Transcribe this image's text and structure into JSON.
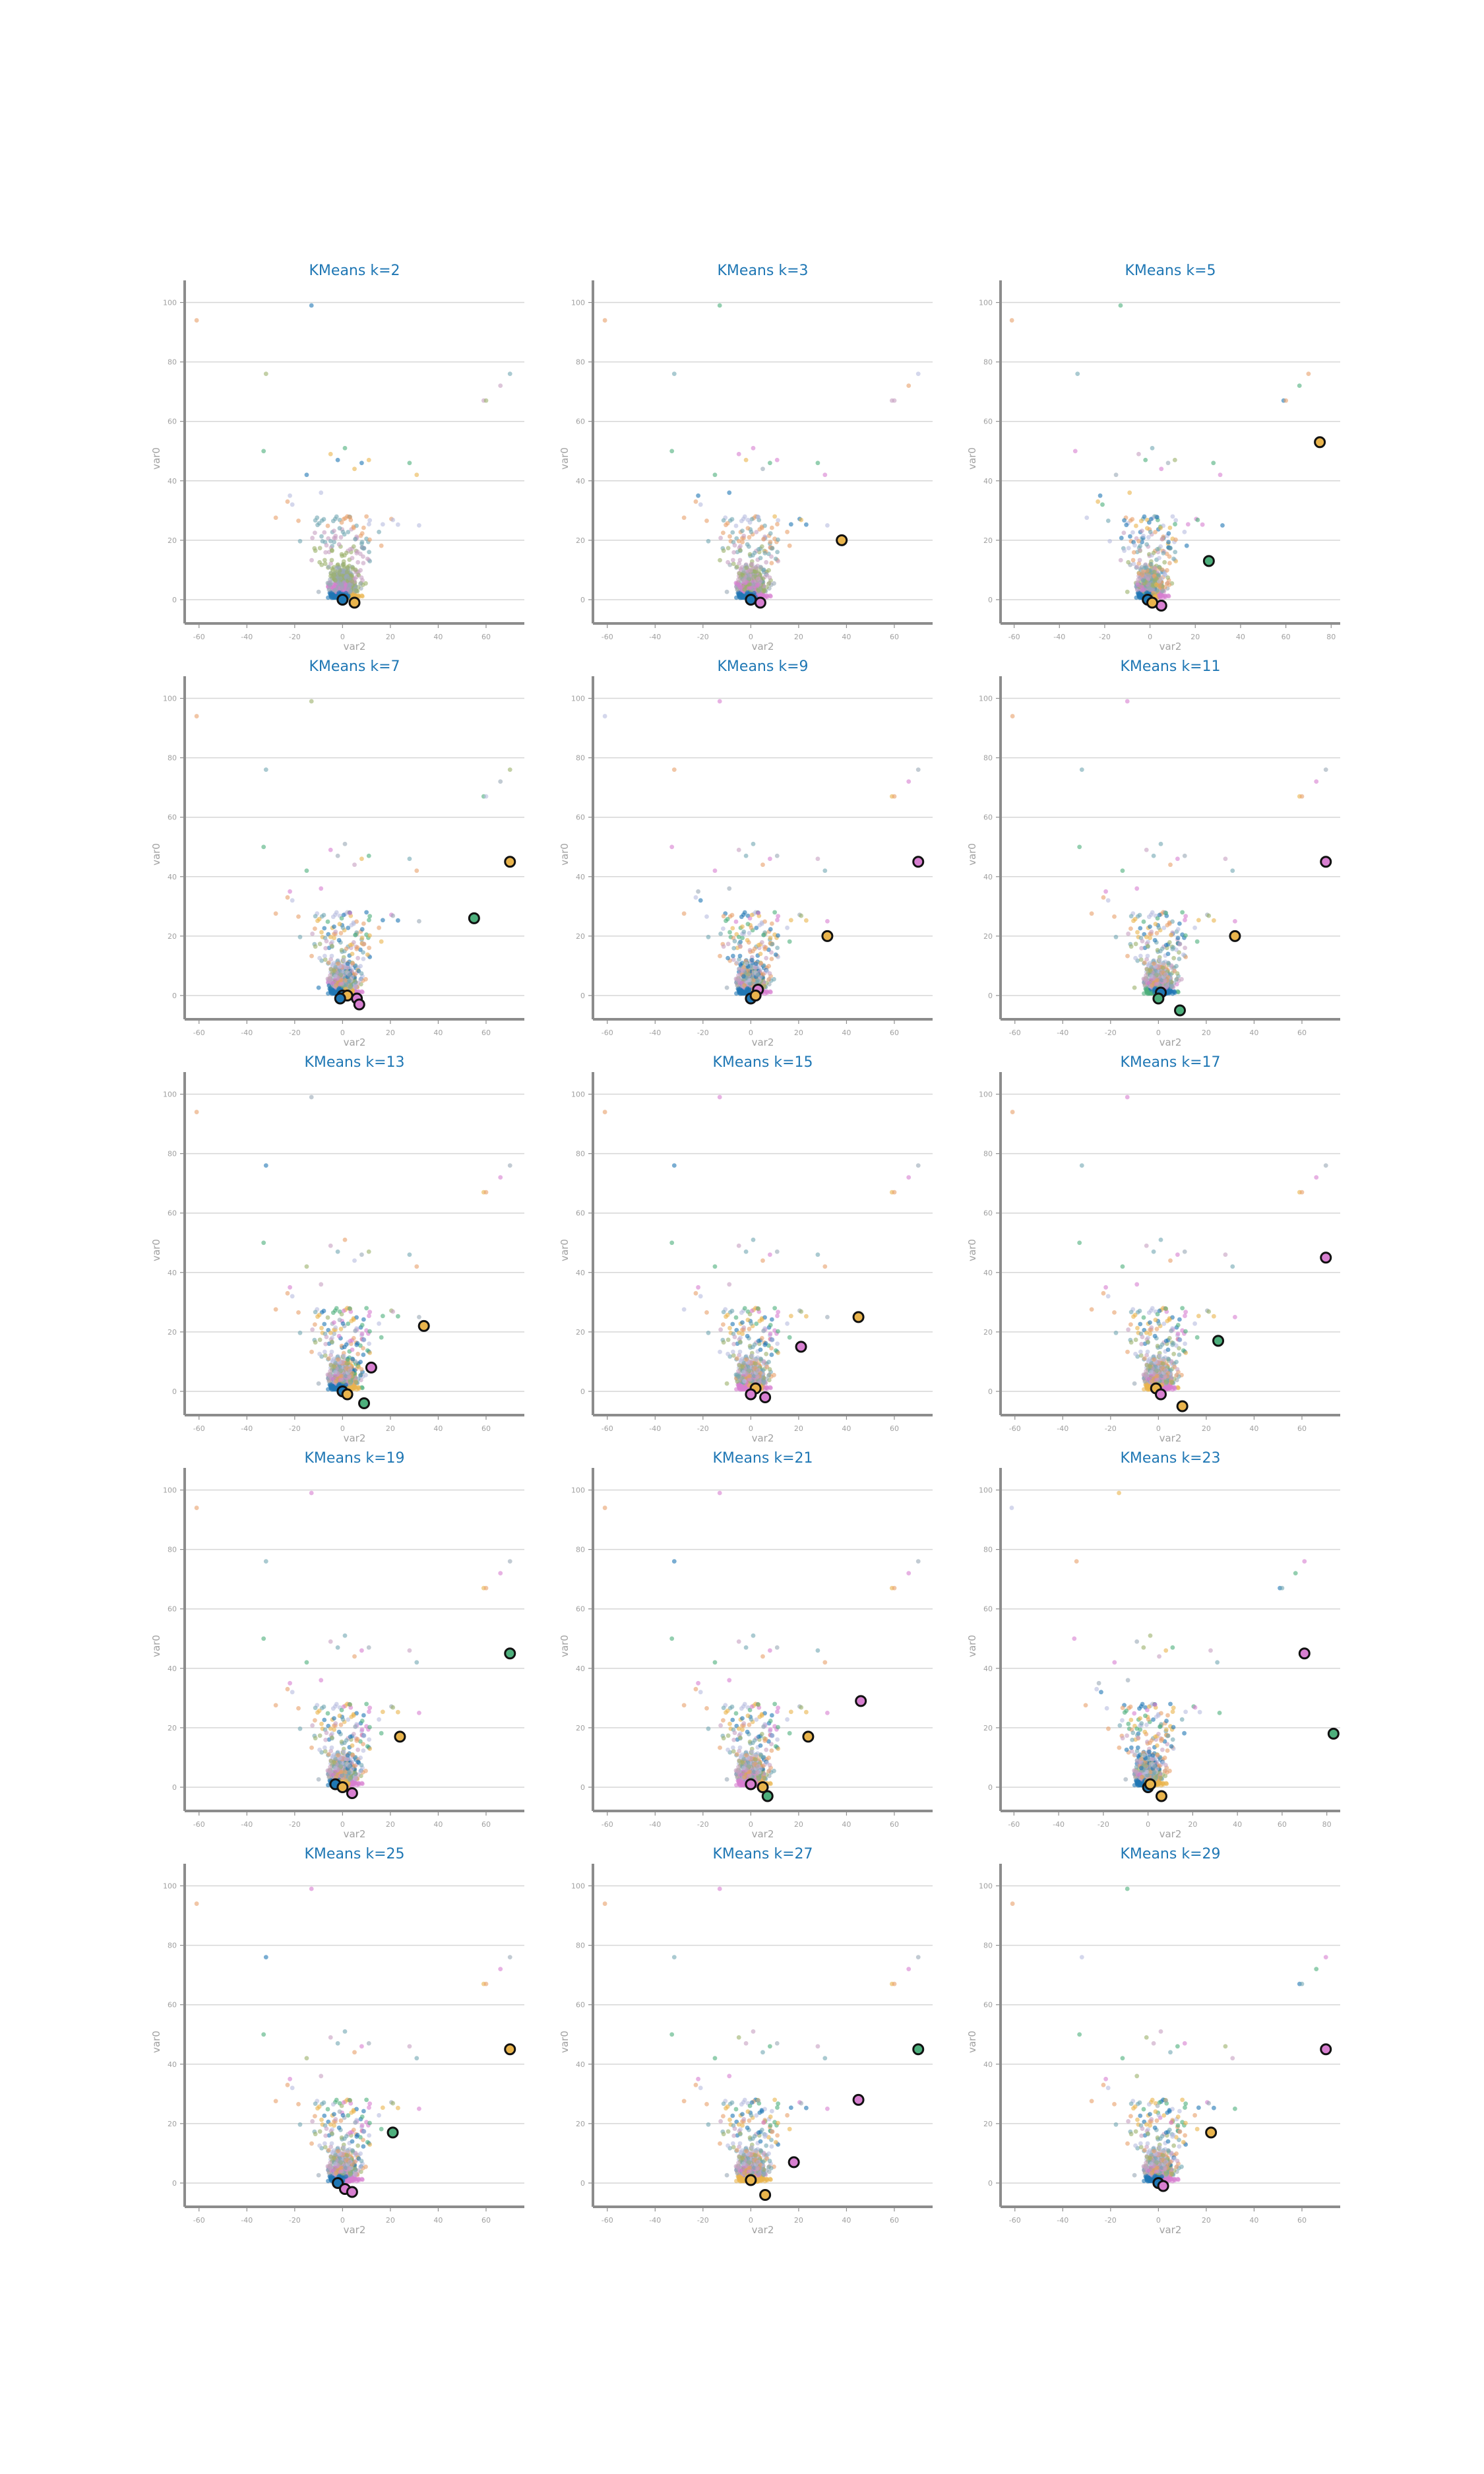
{
  "figure": {
    "background": "#ffffff"
  },
  "cluster_colors": [
    "#1f77b4",
    "#e9b44c",
    "#4daf7c",
    "#d77fd0",
    "#9aa8b6",
    "#9bb06b",
    "#c7a0c2",
    "#71a7b3",
    "#e8a06a",
    "#b8bde0"
  ],
  "chart_data": [
    {
      "type": "scatter",
      "title": "KMeans k=2",
      "xlabel": "var2",
      "ylabel": "var0",
      "xticks": [
        -60,
        -40,
        -20,
        0,
        20,
        40,
        60
      ],
      "yticks": [
        0,
        20,
        40,
        60,
        80,
        100
      ],
      "xlim": [
        -66,
        76
      ],
      "ylim": [
        -8,
        103
      ],
      "grid": "horizontal",
      "centroids": [
        {
          "x": 0,
          "y": 0,
          "color": "#1f77b4"
        },
        {
          "x": 5,
          "y": -1,
          "color": "#e9b44c"
        }
      ]
    },
    {
      "type": "scatter",
      "title": "KMeans k=3",
      "xlabel": "var2",
      "ylabel": "var0",
      "xticks": [
        -60,
        -40,
        -20,
        0,
        20,
        40,
        60
      ],
      "yticks": [
        0,
        20,
        40,
        60,
        80,
        100
      ],
      "xlim": [
        -66,
        76
      ],
      "ylim": [
        -8,
        103
      ],
      "grid": "horizontal",
      "centroids": [
        {
          "x": 0,
          "y": 0,
          "color": "#1f77b4"
        },
        {
          "x": 4,
          "y": -1,
          "color": "#d77fd0"
        },
        {
          "x": 38,
          "y": 20,
          "color": "#e9b44c"
        }
      ]
    },
    {
      "type": "scatter",
      "title": "KMeans k=5",
      "xlabel": "var2",
      "ylabel": "var0",
      "xticks": [
        -60,
        -40,
        -20,
        0,
        20,
        40,
        60,
        80
      ],
      "yticks": [
        0,
        20,
        40,
        60,
        80,
        100
      ],
      "xlim": [
        -66,
        84
      ],
      "ylim": [
        -8,
        103
      ],
      "grid": "horizontal",
      "centroids": [
        {
          "x": -1,
          "y": 0,
          "color": "#1f77b4"
        },
        {
          "x": 5,
          "y": -2,
          "color": "#d77fd0"
        },
        {
          "x": 26,
          "y": 13,
          "color": "#4daf7c"
        },
        {
          "x": 75,
          "y": 53,
          "color": "#e9b44c"
        },
        {
          "x": 1,
          "y": -1,
          "color": "#e9b44c"
        }
      ]
    },
    {
      "type": "scatter",
      "title": "KMeans k=7",
      "xlabel": "var2",
      "ylabel": "var0",
      "xticks": [
        -60,
        -40,
        -20,
        0,
        20,
        40,
        60
      ],
      "yticks": [
        0,
        20,
        40,
        60,
        80,
        100
      ],
      "xlim": [
        -66,
        76
      ],
      "ylim": [
        -8,
        103
      ],
      "grid": "horizontal",
      "centroids": [
        {
          "x": 0,
          "y": 0,
          "color": "#1f77b4"
        },
        {
          "x": 2,
          "y": 0,
          "color": "#e9b44c"
        },
        {
          "x": 6,
          "y": -1,
          "color": "#d77fd0"
        },
        {
          "x": 7,
          "y": -3,
          "color": "#d77fd0"
        },
        {
          "x": 55,
          "y": 26,
          "color": "#4daf7c"
        },
        {
          "x": 70,
          "y": 45,
          "color": "#e9b44c"
        },
        {
          "x": -1,
          "y": -1,
          "color": "#1f77b4"
        }
      ]
    },
    {
      "type": "scatter",
      "title": "KMeans k=9",
      "xlabel": "var2",
      "ylabel": "var0",
      "xticks": [
        -60,
        -40,
        -20,
        0,
        20,
        40,
        60
      ],
      "yticks": [
        0,
        20,
        40,
        60,
        80,
        100
      ],
      "xlim": [
        -66,
        76
      ],
      "ylim": [
        -8,
        103
      ],
      "grid": "horizontal",
      "centroids": [
        {
          "x": 0,
          "y": -1,
          "color": "#1f77b4"
        },
        {
          "x": 3,
          "y": 2,
          "color": "#d77fd0"
        },
        {
          "x": 2,
          "y": 0,
          "color": "#e9b44c"
        },
        {
          "x": 32,
          "y": 20,
          "color": "#e9b44c"
        },
        {
          "x": 70,
          "y": 45,
          "color": "#d77fd0"
        }
      ]
    },
    {
      "type": "scatter",
      "title": "KMeans k=11",
      "xlabel": "var2",
      "ylabel": "var0",
      "xticks": [
        -60,
        -40,
        -20,
        0,
        20,
        40,
        60
      ],
      "yticks": [
        0,
        20,
        40,
        60,
        80,
        100
      ],
      "xlim": [
        -66,
        76
      ],
      "ylim": [
        -8,
        103
      ],
      "grid": "horizontal",
      "centroids": [
        {
          "x": 1,
          "y": 1,
          "color": "#1f77b4"
        },
        {
          "x": 0,
          "y": -1,
          "color": "#4daf7c"
        },
        {
          "x": 9,
          "y": -5,
          "color": "#4daf7c"
        },
        {
          "x": 32,
          "y": 20,
          "color": "#e9b44c"
        },
        {
          "x": 70,
          "y": 45,
          "color": "#d77fd0"
        }
      ]
    },
    {
      "type": "scatter",
      "title": "KMeans k=13",
      "xlabel": "var2",
      "ylabel": "var0",
      "xticks": [
        -60,
        -40,
        -20,
        0,
        20,
        40,
        60
      ],
      "yticks": [
        0,
        20,
        40,
        60,
        80,
        100
      ],
      "xlim": [
        -66,
        76
      ],
      "ylim": [
        -8,
        103
      ],
      "grid": "horizontal",
      "centroids": [
        {
          "x": 0,
          "y": 0,
          "color": "#1f77b4"
        },
        {
          "x": 2,
          "y": -1,
          "color": "#e9b44c"
        },
        {
          "x": 9,
          "y": -4,
          "color": "#4daf7c"
        },
        {
          "x": 12,
          "y": 8,
          "color": "#d77fd0"
        },
        {
          "x": 34,
          "y": 22,
          "color": "#e9b44c"
        }
      ]
    },
    {
      "type": "scatter",
      "title": "KMeans k=15",
      "xlabel": "var2",
      "ylabel": "var0",
      "xticks": [
        -60,
        -40,
        -20,
        0,
        20,
        40,
        60
      ],
      "yticks": [
        0,
        20,
        40,
        60,
        80,
        100
      ],
      "xlim": [
        -66,
        76
      ],
      "ylim": [
        -8,
        103
      ],
      "grid": "horizontal",
      "centroids": [
        {
          "x": 2,
          "y": 1,
          "color": "#e9b44c"
        },
        {
          "x": 0,
          "y": -1,
          "color": "#d77fd0"
        },
        {
          "x": 6,
          "y": -2,
          "color": "#d77fd0"
        },
        {
          "x": 21,
          "y": 15,
          "color": "#d77fd0"
        },
        {
          "x": 45,
          "y": 25,
          "color": "#e9b44c"
        }
      ]
    },
    {
      "type": "scatter",
      "title": "KMeans k=17",
      "xlabel": "var2",
      "ylabel": "var0",
      "xticks": [
        -60,
        -40,
        -20,
        0,
        20,
        40,
        60
      ],
      "yticks": [
        0,
        20,
        40,
        60,
        80,
        100
      ],
      "xlim": [
        -66,
        76
      ],
      "ylim": [
        -8,
        103
      ],
      "grid": "horizontal",
      "centroids": [
        {
          "x": -1,
          "y": 1,
          "color": "#e9b44c"
        },
        {
          "x": 1,
          "y": -1,
          "color": "#d77fd0"
        },
        {
          "x": 10,
          "y": -5,
          "color": "#e9b44c"
        },
        {
          "x": 25,
          "y": 17,
          "color": "#4daf7c"
        },
        {
          "x": 70,
          "y": 45,
          "color": "#d77fd0"
        }
      ]
    },
    {
      "type": "scatter",
      "title": "KMeans k=19",
      "xlabel": "var2",
      "ylabel": "var0",
      "xticks": [
        -60,
        -40,
        -20,
        0,
        20,
        40,
        60
      ],
      "yticks": [
        0,
        20,
        40,
        60,
        80,
        100
      ],
      "xlim": [
        -66,
        76
      ],
      "ylim": [
        -8,
        103
      ],
      "grid": "horizontal",
      "centroids": [
        {
          "x": -3,
          "y": 1,
          "color": "#1f77b4"
        },
        {
          "x": 0,
          "y": 0,
          "color": "#e9b44c"
        },
        {
          "x": 4,
          "y": -2,
          "color": "#d77fd0"
        },
        {
          "x": 24,
          "y": 17,
          "color": "#e9b44c"
        },
        {
          "x": 70,
          "y": 45,
          "color": "#4daf7c"
        }
      ]
    },
    {
      "type": "scatter",
      "title": "KMeans k=21",
      "xlabel": "var2",
      "ylabel": "var0",
      "xticks": [
        -60,
        -40,
        -20,
        0,
        20,
        40,
        60
      ],
      "yticks": [
        0,
        20,
        40,
        60,
        80,
        100
      ],
      "xlim": [
        -66,
        76
      ],
      "ylim": [
        -8,
        103
      ],
      "grid": "horizontal",
      "centroids": [
        {
          "x": 0,
          "y": 1,
          "color": "#d77fd0"
        },
        {
          "x": 5,
          "y": 0,
          "color": "#e9b44c"
        },
        {
          "x": 7,
          "y": -3,
          "color": "#4daf7c"
        },
        {
          "x": 24,
          "y": 17,
          "color": "#e9b44c"
        },
        {
          "x": 46,
          "y": 29,
          "color": "#d77fd0"
        }
      ]
    },
    {
      "type": "scatter",
      "title": "KMeans k=23",
      "xlabel": "var2",
      "ylabel": "var0",
      "xticks": [
        -60,
        -40,
        -20,
        0,
        20,
        40,
        60,
        80
      ],
      "yticks": [
        0,
        20,
        40,
        60,
        80,
        100
      ],
      "xlim": [
        -66,
        86
      ],
      "ylim": [
        -8,
        103
      ],
      "grid": "horizontal",
      "centroids": [
        {
          "x": 0,
          "y": 0,
          "color": "#1f77b4"
        },
        {
          "x": 1,
          "y": 1,
          "color": "#e9b44c"
        },
        {
          "x": 6,
          "y": -3,
          "color": "#e9b44c"
        },
        {
          "x": 70,
          "y": 45,
          "color": "#d77fd0"
        },
        {
          "x": 83,
          "y": 18,
          "color": "#4daf7c"
        }
      ]
    },
    {
      "type": "scatter",
      "title": "KMeans k=25",
      "xlabel": "var2",
      "ylabel": "var0",
      "xticks": [
        -60,
        -40,
        -20,
        0,
        20,
        40,
        60
      ],
      "yticks": [
        0,
        20,
        40,
        60,
        80,
        100
      ],
      "xlim": [
        -66,
        76
      ],
      "ylim": [
        -8,
        103
      ],
      "grid": "horizontal",
      "centroids": [
        {
          "x": -2,
          "y": 0,
          "color": "#1f77b4"
        },
        {
          "x": 1,
          "y": -2,
          "color": "#d77fd0"
        },
        {
          "x": 4,
          "y": -3,
          "color": "#d77fd0"
        },
        {
          "x": 21,
          "y": 17,
          "color": "#4daf7c"
        },
        {
          "x": 70,
          "y": 45,
          "color": "#e9b44c"
        }
      ]
    },
    {
      "type": "scatter",
      "title": "KMeans k=27",
      "xlabel": "var2",
      "ylabel": "var0",
      "xticks": [
        -60,
        -40,
        -20,
        0,
        20,
        40,
        60
      ],
      "yticks": [
        0,
        20,
        40,
        60,
        80,
        100
      ],
      "xlim": [
        -66,
        76
      ],
      "ylim": [
        -8,
        103
      ],
      "grid": "horizontal",
      "centroids": [
        {
          "x": 0,
          "y": 1,
          "color": "#e9b44c"
        },
        {
          "x": 6,
          "y": -4,
          "color": "#e9b44c"
        },
        {
          "x": 18,
          "y": 7,
          "color": "#d77fd0"
        },
        {
          "x": 45,
          "y": 28,
          "color": "#d77fd0"
        },
        {
          "x": 70,
          "y": 45,
          "color": "#4daf7c"
        }
      ]
    },
    {
      "type": "scatter",
      "title": "KMeans k=29",
      "xlabel": "var2",
      "ylabel": "var0",
      "xticks": [
        -60,
        -40,
        -20,
        0,
        20,
        40,
        60
      ],
      "yticks": [
        0,
        20,
        40,
        60,
        80,
        100
      ],
      "xlim": [
        -66,
        76
      ],
      "ylim": [
        -8,
        103
      ],
      "grid": "horizontal",
      "centroids": [
        {
          "x": 0,
          "y": 0,
          "color": "#1f77b4"
        },
        {
          "x": 2,
          "y": -1,
          "color": "#d77fd0"
        },
        {
          "x": 22,
          "y": 17,
          "color": "#e9b44c"
        },
        {
          "x": 70,
          "y": 45,
          "color": "#d77fd0"
        }
      ]
    }
  ]
}
